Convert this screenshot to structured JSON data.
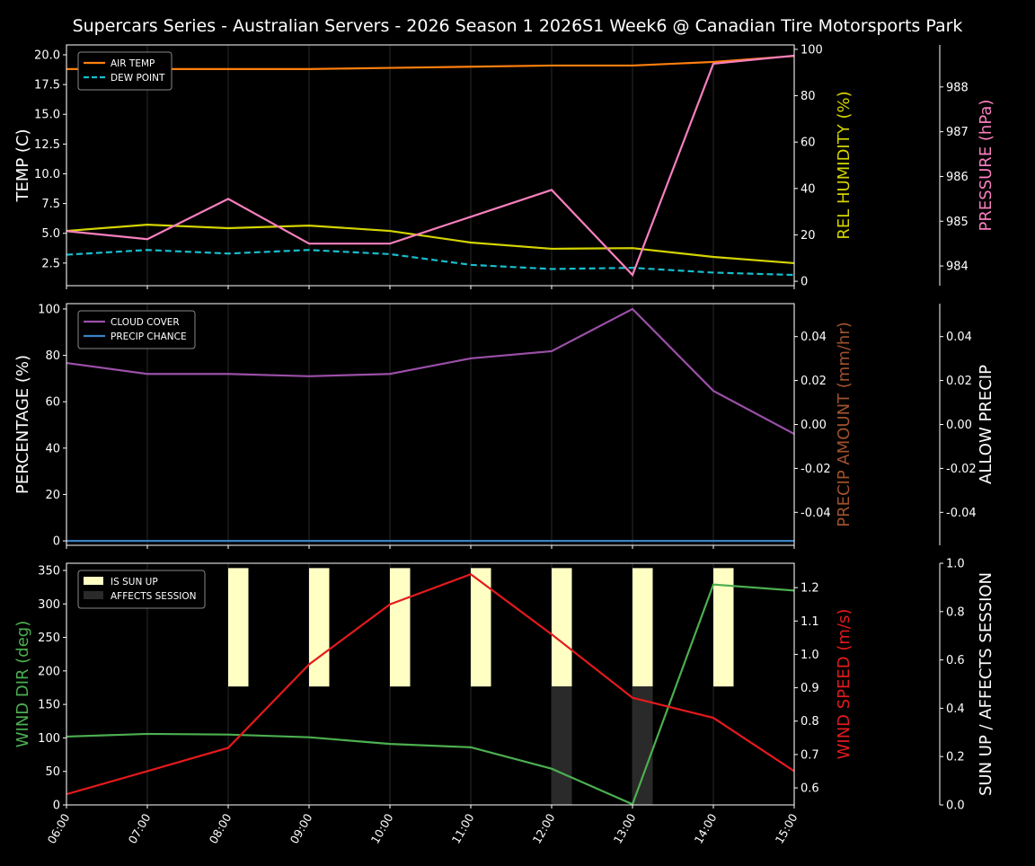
{
  "title": "Supercars Series - Australian Servers - 2026 Season 1 2026S1 Week6 @ Canadian Tire Motorsports Park",
  "x_ticks": [
    "06:00",
    "07:00",
    "08:00",
    "09:00",
    "10:00",
    "11:00",
    "12:00",
    "13:00",
    "14:00",
    "15:00"
  ],
  "chart_data": [
    {
      "type": "line",
      "x": [
        "06:00",
        "07:00",
        "08:00",
        "09:00",
        "10:00",
        "11:00",
        "12:00",
        "13:00",
        "14:00",
        "15:00"
      ],
      "axes": [
        {
          "label": "TEMP (C)",
          "side": "left",
          "color": "#ffffff",
          "range": [
            0.6,
            20.83
          ],
          "ticks": [
            2.5,
            5.0,
            7.5,
            10.0,
            12.5,
            15.0,
            17.5,
            20.0
          ],
          "fmt": 1
        },
        {
          "label": "REL HUMIDITY (%)",
          "side": "right",
          "color": "#d4d400",
          "range": [
            -1.9,
            101.9
          ],
          "ticks": [
            0,
            20,
            40,
            60,
            80,
            100
          ],
          "fmt": 0
        },
        {
          "label": "PRESSURE (hPa)",
          "side": "right-outer",
          "color": "#f77fbe",
          "range": [
            983.56,
            988.94
          ],
          "ticks": [
            984,
            985,
            986,
            987,
            988
          ],
          "fmt": 0
        }
      ],
      "series": [
        {
          "name": "AIR TEMP",
          "axis": 0,
          "color": "#ff7f0e",
          "dash": false,
          "legend": true,
          "values": [
            18.8,
            18.8,
            18.8,
            18.8,
            18.9,
            19.0,
            19.1,
            19.1,
            19.4,
            19.9
          ]
        },
        {
          "name": "DEW POINT",
          "axis": 0,
          "color": "#17becf",
          "dash": true,
          "legend": true,
          "values": [
            3.2,
            3.6,
            3.3,
            3.6,
            3.25,
            2.35,
            2.0,
            2.1,
            1.7,
            1.5
          ]
        },
        {
          "name": "REL HUMIDITY",
          "axis": 1,
          "color": "#d4d400",
          "dash": false,
          "legend": false,
          "values": [
            21.7,
            24.4,
            22.9,
            24.0,
            21.7,
            16.7,
            14.0,
            14.3,
            10.5,
            7.8
          ]
        },
        {
          "name": "PRESSURE",
          "axis": 2,
          "color": "#f77fbe",
          "dash": false,
          "legend": false,
          "values": [
            984.78,
            984.6,
            985.5,
            984.5,
            984.5,
            985.1,
            985.7,
            983.8,
            988.52,
            988.7
          ]
        }
      ],
      "legend_position": "top-left"
    },
    {
      "type": "line",
      "x": [
        "06:00",
        "07:00",
        "08:00",
        "09:00",
        "10:00",
        "11:00",
        "12:00",
        "13:00",
        "14:00",
        "15:00"
      ],
      "axes": [
        {
          "label": "PERCENTAGE (%)",
          "side": "left",
          "color": "#ffffff",
          "range": [
            -1.9,
            102.3
          ],
          "ticks": [
            0,
            20,
            40,
            60,
            80,
            100
          ],
          "fmt": 0
        },
        {
          "label": "PRECIP AMOUNT (mm/hr)",
          "side": "right",
          "color": "#a0522d",
          "range": [
            -0.055,
            0.055
          ],
          "ticks": [
            -0.04,
            -0.02,
            0.0,
            0.02,
            0.04
          ],
          "fmt": 2
        },
        {
          "label": "ALLOW PRECIP",
          "side": "right-outer",
          "color": "#ffffff",
          "range": [
            -0.055,
            0.055
          ],
          "ticks": [
            -0.04,
            -0.02,
            0.0,
            0.02,
            0.04
          ],
          "fmt": 2
        }
      ],
      "series": [
        {
          "name": "CLOUD COVER",
          "axis": 0,
          "color": "#9b4fa8",
          "dash": false,
          "legend": true,
          "values": [
            76.7,
            72,
            72,
            71,
            72,
            78.7,
            81.8,
            100,
            64.7,
            46.1
          ]
        },
        {
          "name": "PRECIP CHANCE",
          "axis": 0,
          "color": "#3b82c4",
          "dash": false,
          "legend": true,
          "values": [
            0,
            0,
            0,
            0,
            0,
            0,
            0,
            0,
            0,
            0
          ]
        }
      ],
      "legend_position": "top-left"
    },
    {
      "type": "line",
      "x": [
        "06:00",
        "07:00",
        "08:00",
        "09:00",
        "10:00",
        "11:00",
        "12:00",
        "13:00",
        "14:00",
        "15:00"
      ],
      "axes": [
        {
          "label": "WIND DIR (deg)",
          "side": "left",
          "color": "#4caf50",
          "range": [
            0,
            360.7
          ],
          "ticks": [
            0,
            50,
            100,
            150,
            200,
            250,
            300,
            350
          ],
          "fmt": 0
        },
        {
          "label": "WIND SPEED (m/s)",
          "side": "right",
          "color": "#e31a1c",
          "range": [
            0.549,
            1.273
          ],
          "ticks": [
            0.6,
            0.7,
            0.8,
            0.9,
            1.0,
            1.1,
            1.2
          ],
          "fmt": 1
        },
        {
          "label": "SUN UP / AFFECTS SESSION",
          "side": "right-outer",
          "color": "#ffffff",
          "range": [
            0,
            1.0
          ],
          "ticks": [
            0.0,
            0.2,
            0.4,
            0.6,
            0.8,
            1.0
          ],
          "fmt": 1
        }
      ],
      "series": [
        {
          "name": "WIND DIR",
          "axis": 0,
          "color": "#4caf50",
          "dash": false,
          "legend": false,
          "values": [
            102,
            106,
            105,
            101,
            91,
            86,
            54,
            1,
            329,
            320
          ]
        },
        {
          "name": "WIND SPEED",
          "axis": 1,
          "color": "#e31a1c",
          "dash": false,
          "legend": false,
          "values": [
            0.581,
            0.65,
            0.72,
            0.97,
            1.15,
            1.24,
            1.06,
            0.87,
            0.81,
            0.65
          ]
        }
      ],
      "bars": [
        {
          "name": "IS SUN UP",
          "color": "#ffffc4",
          "values": [
            0,
            0,
            1,
            1,
            1,
            1,
            1,
            1,
            1,
            0
          ]
        },
        {
          "name": "AFFECTS SESSION",
          "color": "#2a2a2a",
          "values": [
            0,
            0,
            0,
            0,
            0,
            0,
            1,
            1,
            0,
            0
          ]
        }
      ],
      "legend_position": "top-left"
    }
  ]
}
